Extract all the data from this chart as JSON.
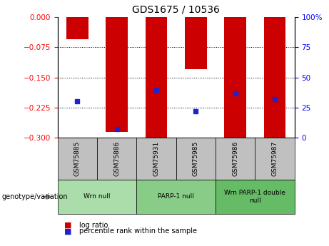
{
  "title": "GDS1675 / 10536",
  "samples": [
    "GSM75885",
    "GSM75886",
    "GSM75931",
    "GSM75985",
    "GSM75986",
    "GSM75987"
  ],
  "log_ratios": [
    -0.055,
    -0.285,
    -0.3,
    -0.13,
    -0.3,
    -0.3
  ],
  "percentile_ranks": [
    30,
    7,
    40,
    22,
    37,
    32
  ],
  "bar_color": "#cc0000",
  "percentile_color": "#2222cc",
  "ylim_left": [
    -0.3,
    0.0
  ],
  "ylim_right": [
    0,
    100
  ],
  "yticks_left": [
    0,
    -0.075,
    -0.15,
    -0.225,
    -0.3
  ],
  "yticks_right": [
    0,
    25,
    50,
    75,
    100
  ],
  "groups": [
    {
      "label": "Wrn null",
      "n": 2,
      "color": "#aaddaa"
    },
    {
      "label": "PARP-1 null",
      "n": 2,
      "color": "#88cc88"
    },
    {
      "label": "Wrn PARP-1 double\nnull",
      "n": 2,
      "color": "#66bb66"
    }
  ],
  "group_bg_color": "#c0c0c0",
  "legend_log_ratio_label": "log ratio",
  "legend_percentile_label": "percentile rank within the sample",
  "genotype_label": "genotype/variation"
}
